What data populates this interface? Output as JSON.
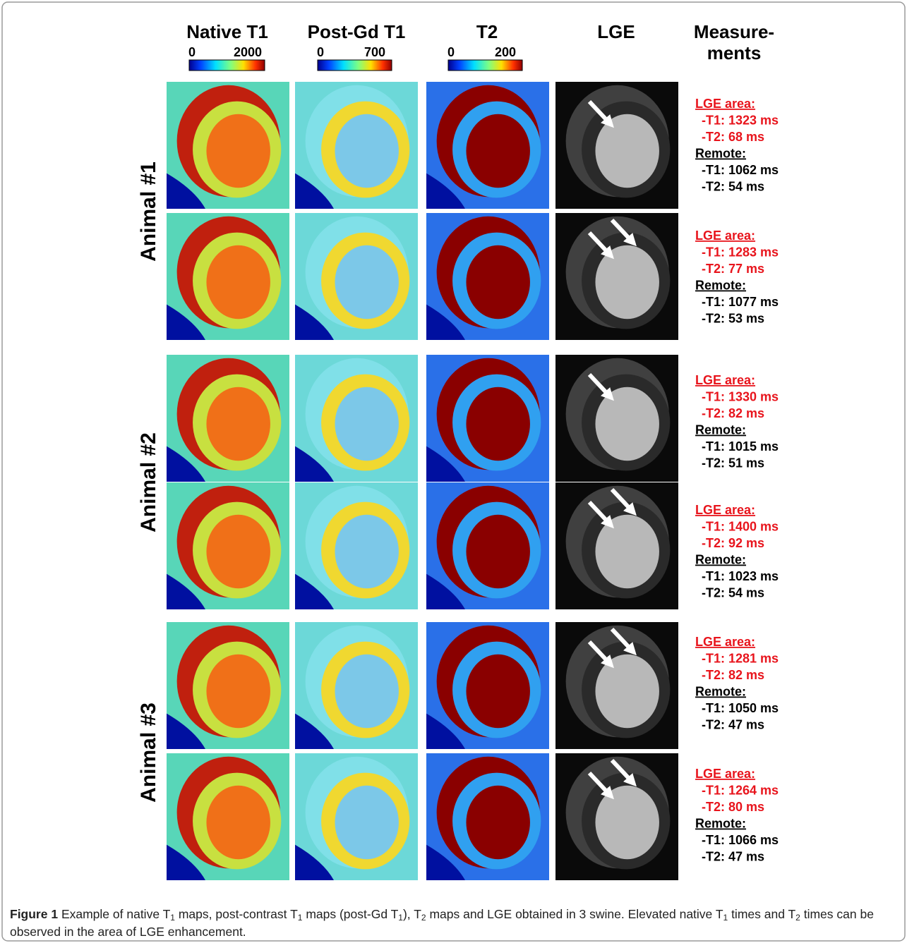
{
  "columns": [
    "Native T1",
    "Post-Gd T1",
    "T2",
    "LGE"
  ],
  "measurements_header": [
    "Measure-",
    "ments"
  ],
  "colorbars": [
    {
      "min": 0,
      "max": 2000
    },
    {
      "min": 0,
      "max": 700
    },
    {
      "min": 0,
      "max": 200
    }
  ],
  "animals": [
    "Animal #1",
    "Animal #2",
    "Animal #3"
  ],
  "measurements": [
    {
      "lesion_label": "LGE area:",
      "lesion": [
        "-T1: 1323 ms",
        "-T2: 68 ms"
      ],
      "remote_label": "Remote:",
      "remote": [
        "-T1: 1062 ms",
        "-T2: 54 ms"
      ]
    },
    {
      "lesion_label": "LGE area:",
      "lesion": [
        "-T1: 1283 ms",
        "-T2: 77 ms"
      ],
      "remote_label": "Remote:",
      "remote": [
        "-T1: 1077 ms",
        "-T2: 53 ms"
      ]
    },
    {
      "lesion_label": "LGE area:",
      "lesion": [
        "-T1: 1330 ms",
        "-T2: 82 ms"
      ],
      "remote_label": "Remote:",
      "remote": [
        "-T1: 1015 ms",
        "-T2: 51 ms"
      ]
    },
    {
      "lesion_label": "LGE area:",
      "lesion": [
        "-T1: 1400 ms",
        "-T2: 92 ms"
      ],
      "remote_label": "Remote:",
      "remote": [
        "-T1: 1023 ms",
        "-T2: 54 ms"
      ]
    },
    {
      "lesion_label": "LGE area:",
      "lesion": [
        "-T1: 1281 ms",
        "-T2: 82 ms"
      ],
      "remote_label": "Remote:",
      "remote": [
        "-T1: 1050 ms",
        "-T2: 47 ms"
      ]
    },
    {
      "lesion_label": "LGE area:",
      "lesion": [
        "-T1: 1264 ms",
        "-T2: 80 ms"
      ],
      "remote_label": "Remote:",
      "remote": [
        "-T1: 1066 ms",
        "-T2: 47 ms"
      ]
    }
  ],
  "caption": {
    "label": "Figure 1",
    "runs": [
      "Example of native T",
      "1",
      " maps, post-contrast T",
      "1",
      " maps (post-Gd T",
      "1",
      "), T",
      "2",
      " maps and LGE obtained in 3 swine. Elevated native T",
      "1",
      " times and T",
      "2",
      " times can be observed in the area of LGE enhancement."
    ]
  }
}
